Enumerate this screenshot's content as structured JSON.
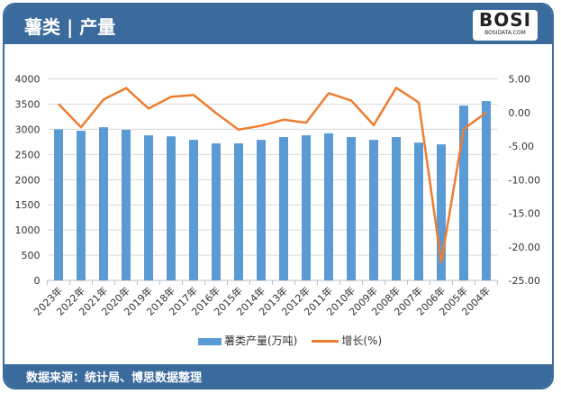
{
  "header": {
    "title": "薯类 | 产量",
    "logo_text": "BOSI",
    "logo_subtext": "BOSIDATA.COM"
  },
  "footer": {
    "source": "数据来源：统计局、博思数据整理"
  },
  "colors": {
    "frame": "#3b6b9c",
    "bar": "#5b9bd5",
    "line": "#ed7d31"
  },
  "chart_data": {
    "type": "bar+line",
    "categories": [
      "2023年",
      "2022年",
      "2021年",
      "2020年",
      "2019年",
      "2018年",
      "2017年",
      "2016年",
      "2015年",
      "2014年",
      "2013年",
      "2012年",
      "2011年",
      "2010年",
      "2009年",
      "2008年",
      "2007年",
      "2006年",
      "2005年",
      "2004年"
    ],
    "series": [
      {
        "name": "薯类产量(万吨)",
        "type": "bar",
        "axis": "left",
        "values": [
          3000,
          2970,
          3040,
          2990,
          2880,
          2860,
          2790,
          2720,
          2720,
          2790,
          2845,
          2880,
          2920,
          2845,
          2790,
          2845,
          2735,
          2700,
          3470,
          3560
        ]
      },
      {
        "name": "增长(%)",
        "type": "line",
        "axis": "right",
        "values": [
          1.26,
          -2.2,
          1.93,
          3.63,
          0.58,
          2.33,
          2.6,
          -0.1,
          -2.56,
          -1.97,
          -1.08,
          -1.52,
          2.87,
          1.79,
          -1.88,
          3.68,
          1.48,
          -22.3,
          -2.47,
          0.0
        ]
      }
    ],
    "y_left": {
      "range": [
        0,
        4000
      ],
      "ticks": [
        "0",
        "500",
        "1000",
        "1500",
        "2000",
        "2500",
        "3000",
        "3500",
        "4000"
      ]
    },
    "y_right": {
      "range": [
        -25,
        5
      ],
      "ticks": [
        "-25.00",
        "-20.00",
        "-15.00",
        "-10.00",
        "-5.00",
        "0.00",
        "5.00"
      ]
    },
    "grid": true,
    "legend": "bottom"
  }
}
